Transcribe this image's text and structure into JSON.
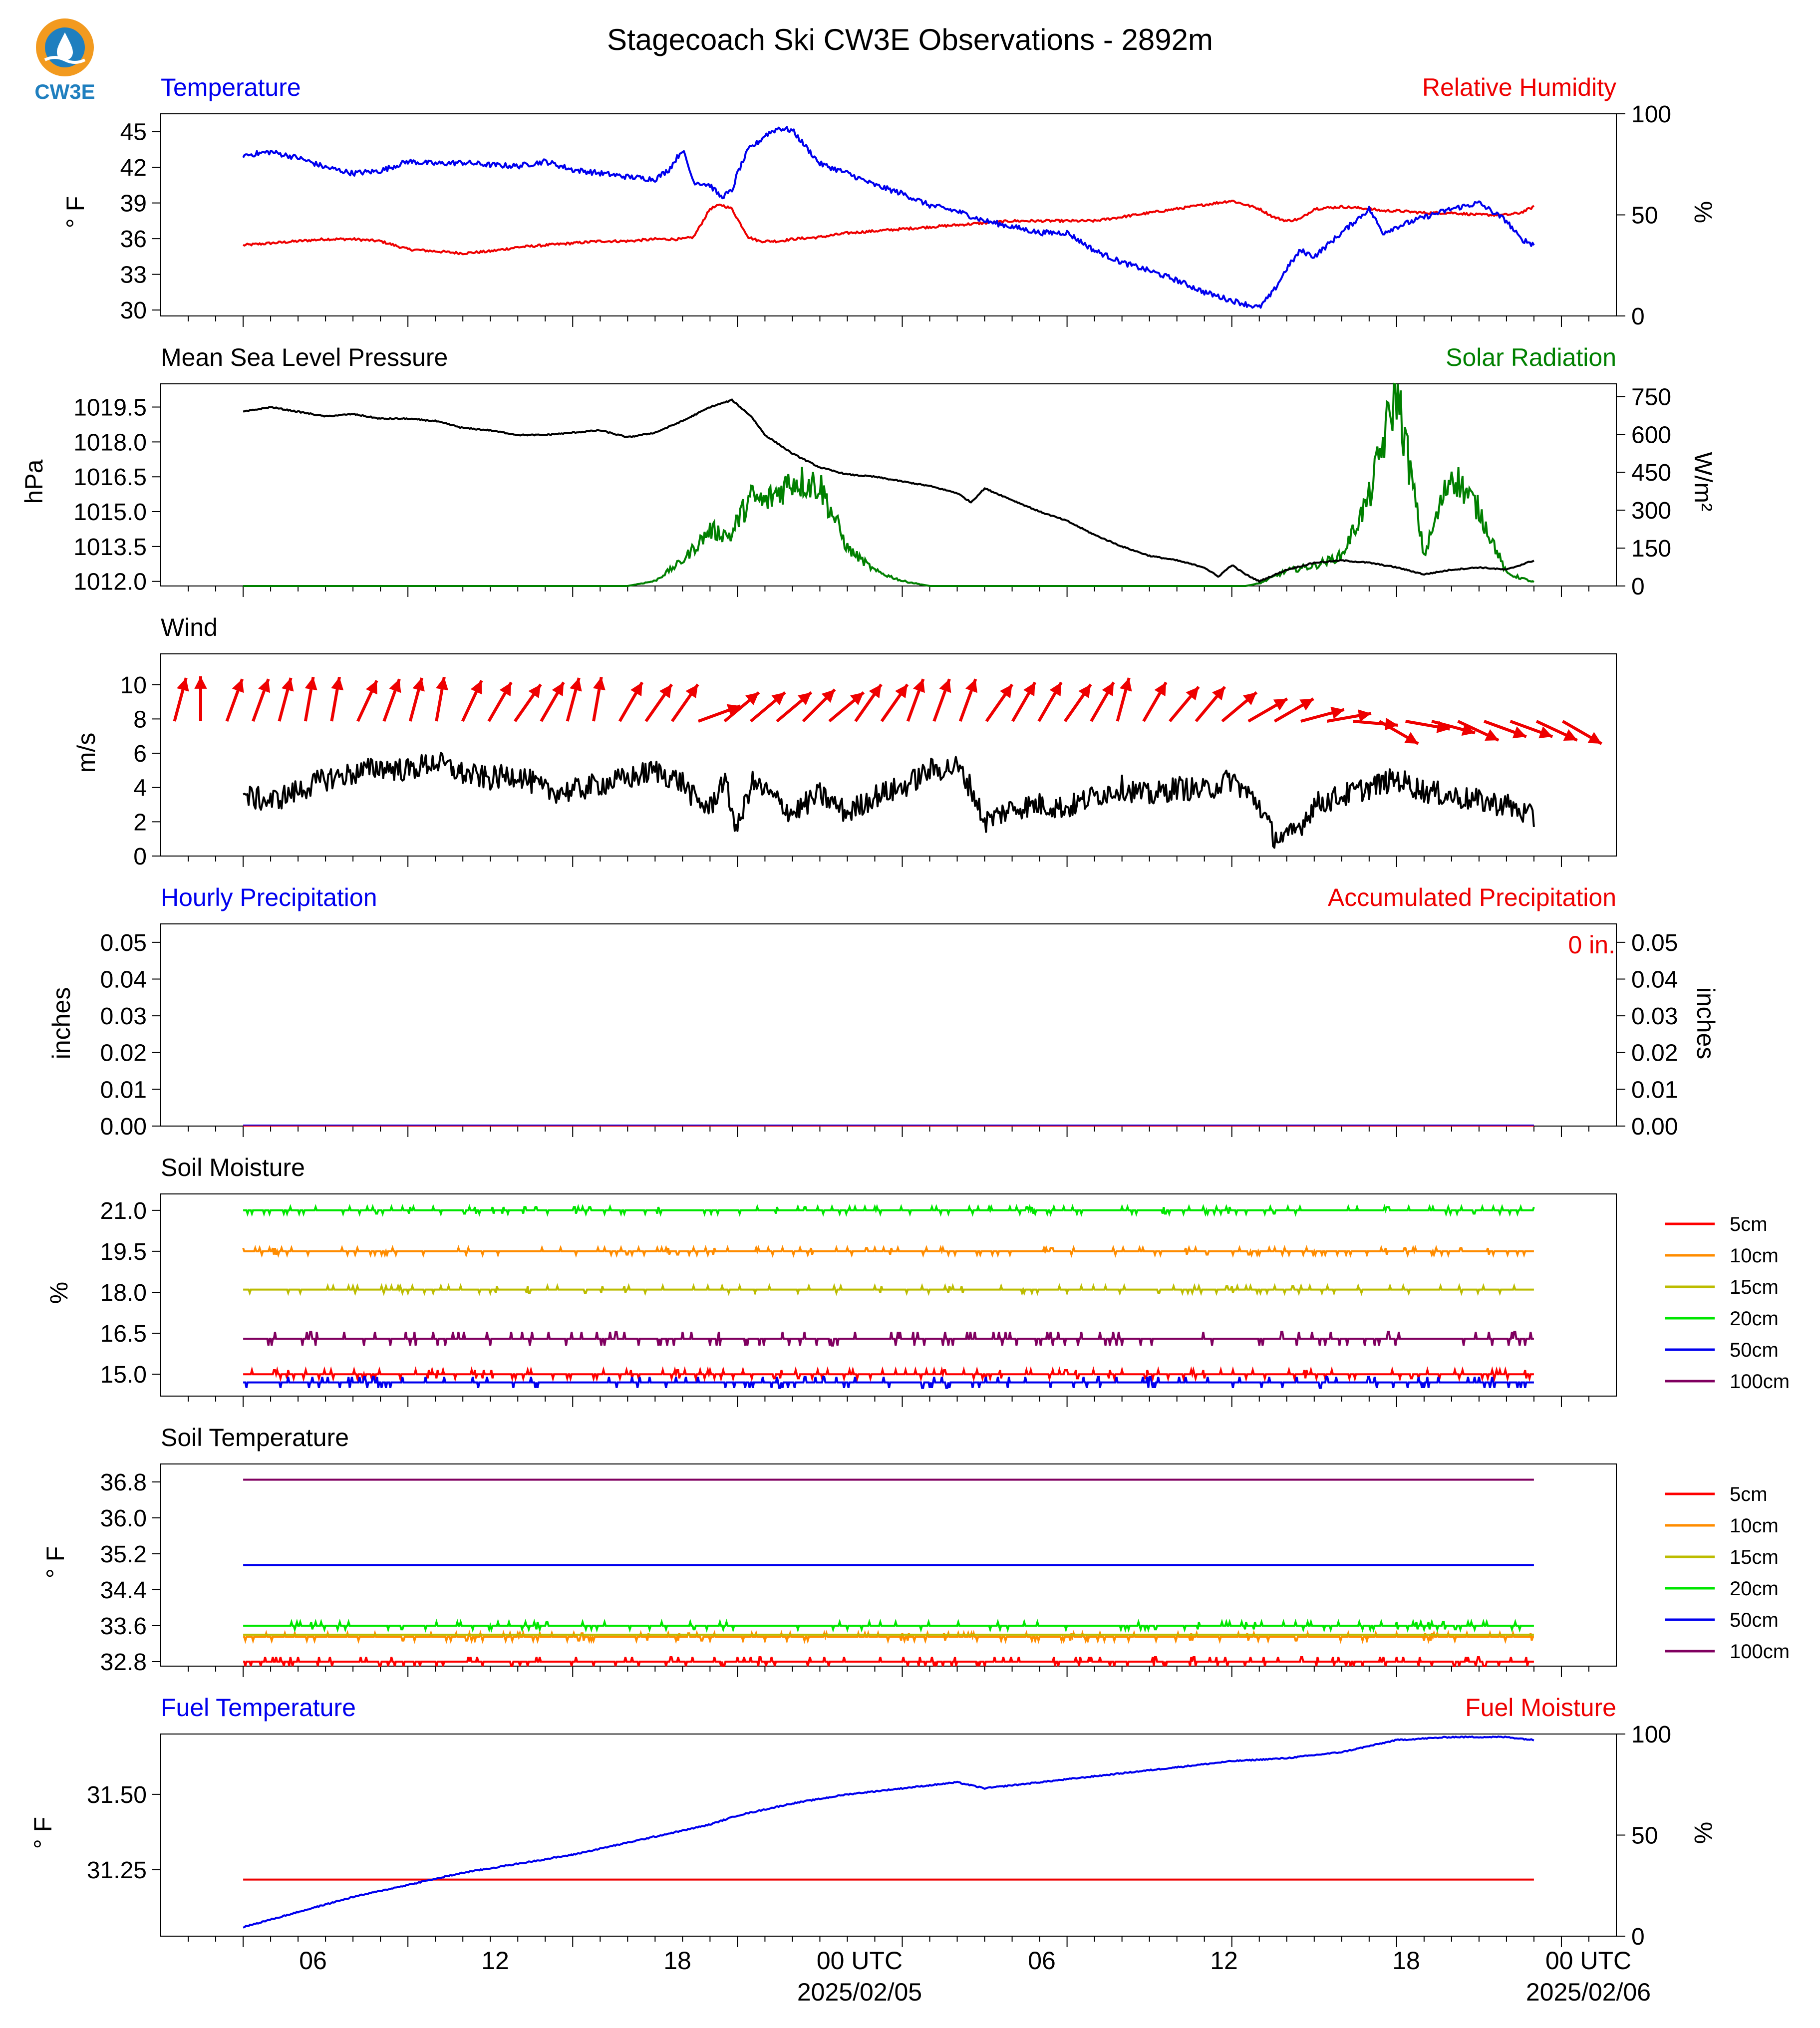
{
  "page": {
    "title": "Stagecoach Ski CW3E Observations - 2892m",
    "logo_text": "CW3E"
  },
  "x_axis": {
    "tick_labels": [
      "06",
      "12",
      "18",
      "00 UTC",
      "06",
      "12",
      "18",
      "00 UTC"
    ],
    "date_labels": [
      "2025/02/05",
      "2025/02/06"
    ]
  },
  "colors": {
    "temperature": "#0000ee",
    "humidity": "#ee0000",
    "pressure": "#000000",
    "solar": "#008000",
    "wind": "#ee0000"
  },
  "chart_data": [
    {
      "type": "line",
      "title_left": "Temperature",
      "title_right": "Relative Humidity",
      "ylabel": "° F",
      "ylabel_right": "%",
      "ylim": [
        29.5,
        46.5
      ],
      "ylim_right": [
        0,
        100
      ],
      "yticks": [
        "30",
        "33",
        "36",
        "39",
        "42",
        "45"
      ],
      "yticks_right": [
        "0",
        "50",
        "100"
      ],
      "x_hours": [
        0,
        1,
        2,
        3,
        4,
        5,
        6,
        7,
        8,
        9,
        10,
        11,
        12,
        13,
        14,
        15,
        15.5,
        16,
        16.4,
        17,
        17.4,
        17.8,
        18,
        18.4,
        18.8,
        19,
        19.5,
        20,
        21,
        22,
        23,
        24,
        25,
        26,
        27,
        28,
        29,
        30,
        31,
        32,
        33,
        34,
        35,
        36,
        37,
        37.5,
        38,
        38.5,
        39,
        40,
        41,
        41.5,
        42,
        43,
        44,
        45,
        46,
        46.5,
        47
      ],
      "series": [
        {
          "name": "Temperature",
          "axis": "left",
          "values": [
            43.0,
            43.3,
            42.8,
            42.0,
            41.5,
            41.7,
            42.5,
            42.3,
            42.4,
            42.2,
            42.1,
            42.5,
            41.8,
            41.5,
            41.2,
            41.0,
            41.8,
            43.5,
            40.8,
            40.5,
            39.5,
            40.0,
            41.5,
            43.5,
            44.2,
            44.7,
            45.3,
            45.1,
            42.3,
            41.5,
            40.5,
            39.8,
            38.8,
            38.3,
            37.5,
            37.0,
            36.5,
            36.5,
            35.0,
            34.0,
            33.3,
            32.5,
            31.5,
            30.8,
            30.2,
            31.5,
            33.5,
            35.0,
            34.5,
            36.5,
            38.5,
            36.5,
            37.0,
            37.8,
            38.5,
            39.0,
            37.5,
            36.0,
            35.5
          ]
        },
        {
          "name": "Relative Humidity",
          "axis": "right",
          "values": [
            35,
            36,
            37,
            38,
            38,
            37,
            33,
            32,
            31,
            32,
            34,
            35,
            36,
            37,
            37,
            38,
            38,
            38,
            39,
            53,
            55,
            53,
            48,
            39,
            37,
            37,
            37,
            38,
            39,
            41,
            42,
            43,
            44,
            45,
            46,
            47,
            47,
            47,
            47,
            49,
            51,
            53,
            55,
            57,
            53,
            49,
            47,
            48,
            53,
            54,
            53,
            52,
            52,
            51,
            51,
            50,
            50,
            51,
            54
          ]
        }
      ]
    },
    {
      "type": "line",
      "title_left": "Mean Sea Level Pressure",
      "title_right": "Solar Radiation",
      "ylabel": "hPa",
      "ylabel_right": "W/m²",
      "ylim": [
        1011.8,
        1020.5
      ],
      "ylim_right": [
        0,
        800
      ],
      "yticks": [
        "1012.0",
        "1013.5",
        "1015.0",
        "1016.5",
        "1018.0",
        "1019.5"
      ],
      "yticks_right": [
        "0",
        "150",
        "300",
        "450",
        "600",
        "750"
      ],
      "x_hours": [
        0,
        1,
        2,
        3,
        4,
        5,
        6,
        7,
        8,
        9,
        10,
        11,
        12,
        13,
        14,
        15,
        16,
        17,
        17.8,
        18,
        18.5,
        19,
        20,
        21,
        22,
        23,
        24,
        25,
        26,
        26.5,
        27,
        28,
        29,
        30,
        31,
        32,
        33,
        34,
        35,
        35.5,
        36,
        36.5,
        37,
        38,
        39,
        40,
        41,
        42,
        43,
        44,
        45,
        46,
        47
      ],
      "series": [
        {
          "name": "Mean Sea Level Pressure",
          "axis": "left",
          "values": [
            1019.3,
            1019.5,
            1019.3,
            1019.1,
            1019.2,
            1019.0,
            1019.0,
            1018.9,
            1018.6,
            1018.5,
            1018.3,
            1018.3,
            1018.4,
            1018.5,
            1018.2,
            1018.4,
            1018.9,
            1019.5,
            1019.8,
            1019.6,
            1019.1,
            1018.3,
            1017.5,
            1016.9,
            1016.6,
            1016.5,
            1016.3,
            1016.1,
            1015.8,
            1015.4,
            1016.0,
            1015.5,
            1015.0,
            1014.6,
            1014.0,
            1013.5,
            1013.1,
            1012.9,
            1012.6,
            1012.2,
            1012.7,
            1012.3,
            1012.0,
            1012.5,
            1012.8,
            1012.9,
            1012.8,
            1012.6,
            1012.3,
            1012.5,
            1012.6,
            1012.5,
            1012.9
          ]
        },
        {
          "name": "Solar Radiation",
          "axis": "right",
          "values": [
            0,
            0,
            0,
            0,
            0,
            0,
            0,
            0,
            0,
            0,
            0,
            0,
            0,
            0,
            0,
            20,
            100,
            220,
            200,
            260,
            350,
            330,
            420,
            400,
            150,
            60,
            20,
            0,
            0,
            0,
            0,
            0,
            0,
            0,
            0,
            0,
            0,
            0,
            0,
            0,
            0,
            0,
            10,
            60,
            80,
            120,
            350,
            780,
            120,
            450,
            300,
            50,
            15
          ]
        }
      ]
    },
    {
      "type": "line",
      "title_left": "Wind",
      "ylabel": "m/s",
      "ylim": [
        0,
        11.8
      ],
      "yticks": [
        "0",
        "2",
        "4",
        "6",
        "8",
        "10"
      ],
      "x_hours": [
        0,
        1,
        2,
        3,
        4,
        5,
        6,
        7,
        8,
        9,
        10,
        11,
        12,
        13,
        14,
        15,
        16,
        16.5,
        17,
        17.5,
        18,
        18.5,
        19,
        20,
        21,
        22,
        23,
        24,
        25,
        26,
        26.5,
        27,
        28,
        29,
        30,
        31,
        32,
        33,
        34,
        35,
        36,
        37,
        37.5,
        38,
        38.5,
        39,
        40,
        41,
        42,
        43,
        44,
        45,
        46,
        47
      ],
      "series": [
        {
          "name": "Wind Speed",
          "axis": "left",
          "values": [
            3.5,
            3.2,
            3.8,
            4.5,
            4.8,
            5.2,
            5.0,
            5.5,
            4.8,
            4.5,
            4.8,
            3.8,
            3.8,
            4.2,
            4.5,
            5.0,
            4.3,
            3.2,
            2.8,
            4.5,
            1.5,
            4.3,
            3.8,
            2.5,
            3.6,
            2.5,
            3.5,
            4.0,
            5.0,
            5.2,
            4.0,
            2.0,
            2.8,
            3.0,
            2.8,
            3.5,
            4.0,
            3.5,
            4.0,
            3.8,
            4.5,
            3.0,
            1.2,
            1.0,
            1.8,
            3.0,
            3.5,
            4.0,
            4.5,
            3.8,
            3.5,
            3.2,
            3.0,
            2.2
          ]
        }
      ],
      "barb_speeds": [
        9,
        10,
        10,
        10,
        10,
        10,
        10,
        10,
        10,
        10,
        10,
        10,
        9,
        9,
        9,
        9,
        9,
        9,
        9,
        9,
        10,
        10,
        10,
        10,
        10,
        10,
        10,
        10,
        10,
        10,
        10,
        10,
        10,
        10,
        10,
        10,
        10,
        10,
        10,
        10,
        10,
        10,
        8,
        8,
        8,
        8,
        8,
        8,
        8,
        8,
        8,
        8,
        8,
        8
      ],
      "barb_directions": [
        195,
        180,
        200,
        200,
        195,
        190,
        190,
        205,
        200,
        195,
        190,
        205,
        210,
        215,
        210,
        195,
        190,
        210,
        215,
        215,
        250,
        230,
        230,
        230,
        225,
        230,
        215,
        215,
        200,
        200,
        200,
        215,
        210,
        210,
        215,
        210,
        195,
        210,
        220,
        220,
        230,
        240,
        240,
        255,
        260,
        275,
        300,
        280,
        285,
        295,
        290,
        290,
        295,
        300
      ]
    },
    {
      "type": "line",
      "title_left": "Hourly Precipitation",
      "title_right": "Accumulated Precipitation",
      "ylabel": "inches",
      "ylabel_right": "inches",
      "ylim": [
        0,
        0.055
      ],
      "yticks": [
        "0.00",
        "0.01",
        "0.02",
        "0.03",
        "0.04",
        "0.05"
      ],
      "yticks_right": [
        "0.00",
        "0.01",
        "0.02",
        "0.03",
        "0.04",
        "0.05"
      ],
      "annotation": "0 in.",
      "x_hours": [
        0,
        47
      ],
      "series": [
        {
          "name": "Hourly Precipitation",
          "axis": "left",
          "values": [
            0,
            0
          ]
        },
        {
          "name": "Accumulated Precipitation",
          "axis": "right",
          "values": [
            0,
            0
          ]
        }
      ]
    },
    {
      "type": "line",
      "title_left": "Soil Moisture",
      "ylabel": "%",
      "ylim": [
        14.2,
        21.6
      ],
      "yticks": [
        "15.0",
        "16.5",
        "18.0",
        "19.5",
        "21.0"
      ],
      "legend": "right",
      "series": [
        {
          "name": "5cm",
          "color": "#ff0000",
          "level": 15.0,
          "noise": 0.15
        },
        {
          "name": "10cm",
          "color": "#ff8c00",
          "level": 19.5,
          "noise": 0.12
        },
        {
          "name": "15cm",
          "color": "#bcbc00",
          "level": 18.1,
          "noise": 0.12
        },
        {
          "name": "20cm",
          "color": "#00e600",
          "level": 21.0,
          "noise": 0.12
        },
        {
          "name": "50cm",
          "color": "#0000ee",
          "level": 14.7,
          "noise": 0.2
        },
        {
          "name": "100cm",
          "color": "#800060",
          "level": 16.3,
          "noise": 0.25
        }
      ]
    },
    {
      "type": "line",
      "title_left": "Soil Temperature",
      "ylabel": "° F",
      "ylim": [
        32.7,
        37.2
      ],
      "yticks": [
        "32.8",
        "33.6",
        "34.4",
        "35.2",
        "36.0",
        "36.8"
      ],
      "legend": "right",
      "series": [
        {
          "name": "5cm",
          "color": "#ff0000",
          "level": 32.8,
          "noise": 0.1
        },
        {
          "name": "10cm",
          "color": "#ff8c00",
          "level": 33.35,
          "noise": 0.08
        },
        {
          "name": "15cm",
          "color": "#bcbc00",
          "level": 33.4,
          "noise": 0.0
        },
        {
          "name": "20cm",
          "color": "#00e600",
          "level": 33.6,
          "noise": 0.08
        },
        {
          "name": "50cm",
          "color": "#0000ee",
          "level": 34.95,
          "noise": 0.0
        },
        {
          "name": "100cm",
          "color": "#800060",
          "level": 36.85,
          "noise": 0.0
        }
      ]
    },
    {
      "type": "line",
      "title_left": "Fuel Temperature",
      "title_right": "Fuel Moisture",
      "ylabel": "° F",
      "ylabel_right": "%",
      "ylim": [
        31.03,
        31.7
      ],
      "ylim_right": [
        0,
        100
      ],
      "yticks": [
        "31.25",
        "31.50"
      ],
      "yticks_right": [
        "0",
        "50",
        "100"
      ],
      "x_hours": [
        0,
        2,
        4,
        6,
        8,
        10,
        12,
        14,
        16,
        17,
        18,
        20,
        22,
        24,
        26,
        27,
        28,
        30,
        32,
        34,
        36,
        38,
        40,
        41,
        42,
        44,
        45,
        46,
        47
      ],
      "series": [
        {
          "name": "Fuel Temperature",
          "axis": "left",
          "values": [
            31.06,
            31.11,
            31.16,
            31.2,
            31.24,
            31.27,
            31.3,
            31.34,
            31.38,
            31.4,
            31.43,
            31.47,
            31.5,
            31.52,
            31.54,
            31.52,
            31.53,
            31.55,
            31.57,
            31.59,
            31.61,
            31.62,
            31.64,
            31.66,
            31.68,
            31.69,
            31.69,
            31.69,
            31.68
          ]
        },
        {
          "name": "Fuel Moisture",
          "axis": "right",
          "values": [
            28,
            28,
            28,
            28,
            28,
            28,
            28,
            28,
            28,
            28,
            28,
            28,
            28,
            28,
            28,
            28,
            28,
            28,
            28,
            28,
            28,
            28,
            28,
            28,
            28,
            28,
            28,
            28,
            28
          ]
        }
      ]
    }
  ]
}
